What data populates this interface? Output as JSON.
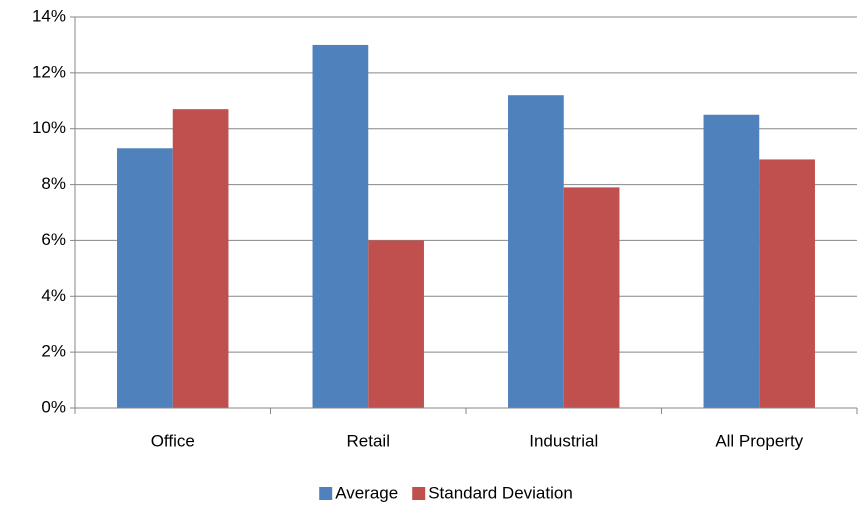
{
  "chart_data": {
    "type": "bar",
    "categories": [
      "Office",
      "Retail",
      "Industrial",
      "All Property"
    ],
    "series": [
      {
        "name": "Average",
        "color": "#4f81bd",
        "values": [
          9.3,
          13.0,
          11.2,
          10.5
        ]
      },
      {
        "name": "Standard Deviation",
        "color": "#c0504d",
        "values": [
          10.7,
          6.0,
          7.9,
          8.9
        ]
      }
    ],
    "ylim": [
      0,
      14
    ],
    "yticks": [
      {
        "value": 0,
        "label": "0%"
      },
      {
        "value": 2,
        "label": "2%"
      },
      {
        "value": 4,
        "label": "4%"
      },
      {
        "value": 6,
        "label": "6%"
      },
      {
        "value": 8,
        "label": "8%"
      },
      {
        "value": 10,
        "label": "10%"
      },
      {
        "value": 12,
        "label": "12%"
      },
      {
        "value": 14,
        "label": "14%"
      }
    ],
    "grid": true,
    "legend": "bottom"
  }
}
